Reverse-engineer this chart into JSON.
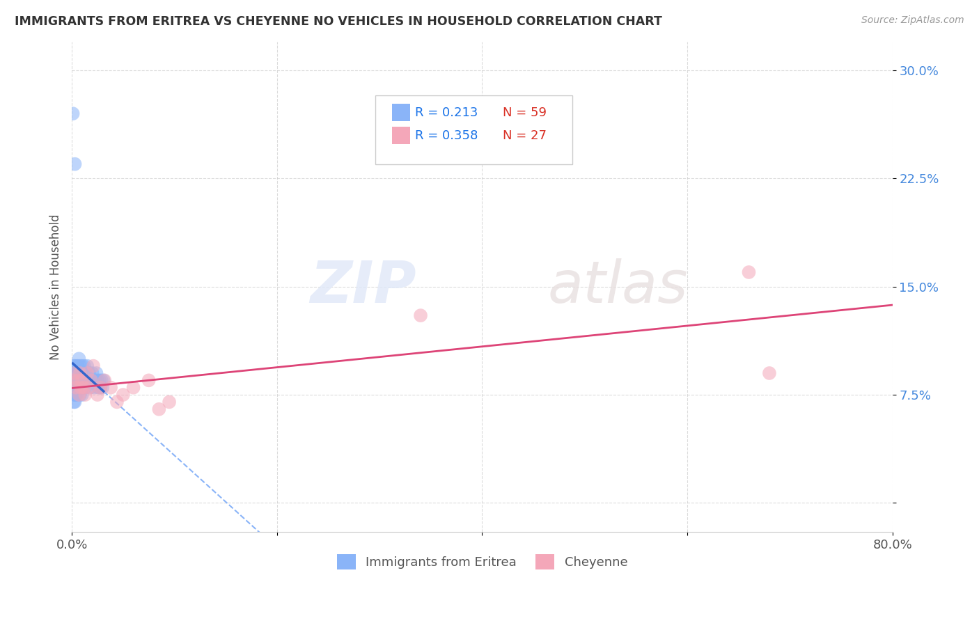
{
  "title": "IMMIGRANTS FROM ERITREA VS CHEYENNE NO VEHICLES IN HOUSEHOLD CORRELATION CHART",
  "source": "Source: ZipAtlas.com",
  "ylabel": "No Vehicles in Household",
  "xlim": [
    0.0,
    0.8
  ],
  "ylim": [
    -0.02,
    0.32
  ],
  "xticks": [
    0.0,
    0.2,
    0.4,
    0.6,
    0.8
  ],
  "xtick_labels": [
    "0.0%",
    "",
    "",
    "",
    "80.0%"
  ],
  "yticks": [
    0.0,
    0.075,
    0.15,
    0.225,
    0.3
  ],
  "ytick_labels": [
    "",
    "7.5%",
    "15.0%",
    "22.5%",
    "30.0%"
  ],
  "series1_label": "Immigrants from Eritrea",
  "series1_color": "#8ab4f8",
  "series1_R": "0.213",
  "series1_N": "59",
  "series2_label": "Cheyenne",
  "series2_color": "#f4a7b9",
  "series2_R": "0.358",
  "series2_N": "27",
  "legend_R_color": "#1a73e8",
  "legend_N_color": "#d93025",
  "background_color": "#ffffff",
  "series1_x": [
    0.001,
    0.001,
    0.001,
    0.002,
    0.002,
    0.002,
    0.002,
    0.003,
    0.003,
    0.003,
    0.003,
    0.003,
    0.004,
    0.004,
    0.004,
    0.005,
    0.005,
    0.005,
    0.005,
    0.006,
    0.006,
    0.006,
    0.007,
    0.007,
    0.007,
    0.008,
    0.008,
    0.008,
    0.009,
    0.009,
    0.01,
    0.01,
    0.01,
    0.011,
    0.011,
    0.012,
    0.012,
    0.013,
    0.013,
    0.014,
    0.015,
    0.016,
    0.017,
    0.018,
    0.019,
    0.02,
    0.021,
    0.022,
    0.023,
    0.024,
    0.025,
    0.026,
    0.027,
    0.028,
    0.029,
    0.03,
    0.031,
    0.001,
    0.003
  ],
  "series1_y": [
    0.085,
    0.09,
    0.08,
    0.095,
    0.08,
    0.075,
    0.07,
    0.095,
    0.085,
    0.08,
    0.075,
    0.07,
    0.09,
    0.08,
    0.075,
    0.095,
    0.085,
    0.08,
    0.075,
    0.095,
    0.085,
    0.08,
    0.1,
    0.09,
    0.08,
    0.095,
    0.085,
    0.075,
    0.09,
    0.08,
    0.095,
    0.085,
    0.075,
    0.09,
    0.08,
    0.095,
    0.085,
    0.09,
    0.08,
    0.085,
    0.095,
    0.085,
    0.09,
    0.08,
    0.085,
    0.09,
    0.085,
    0.08,
    0.085,
    0.09,
    0.085,
    0.08,
    0.085,
    0.08,
    0.085,
    0.08,
    0.085,
    0.27,
    0.235
  ],
  "series2_x": [
    0.001,
    0.003,
    0.004,
    0.006,
    0.007,
    0.008,
    0.009,
    0.01,
    0.012,
    0.013,
    0.015,
    0.017,
    0.019,
    0.021,
    0.025,
    0.028,
    0.032,
    0.038,
    0.044,
    0.05,
    0.06,
    0.075,
    0.085,
    0.095,
    0.34,
    0.66,
    0.68
  ],
  "series2_y": [
    0.085,
    0.09,
    0.08,
    0.085,
    0.075,
    0.09,
    0.08,
    0.085,
    0.08,
    0.075,
    0.09,
    0.08,
    0.085,
    0.095,
    0.075,
    0.08,
    0.085,
    0.08,
    0.07,
    0.075,
    0.08,
    0.085,
    0.065,
    0.07,
    0.13,
    0.16,
    0.09
  ],
  "trendline_color_series1": "#3366cc",
  "trendline_color_series2": "#dd4477",
  "dashed_line_color": "#8ab4f8"
}
